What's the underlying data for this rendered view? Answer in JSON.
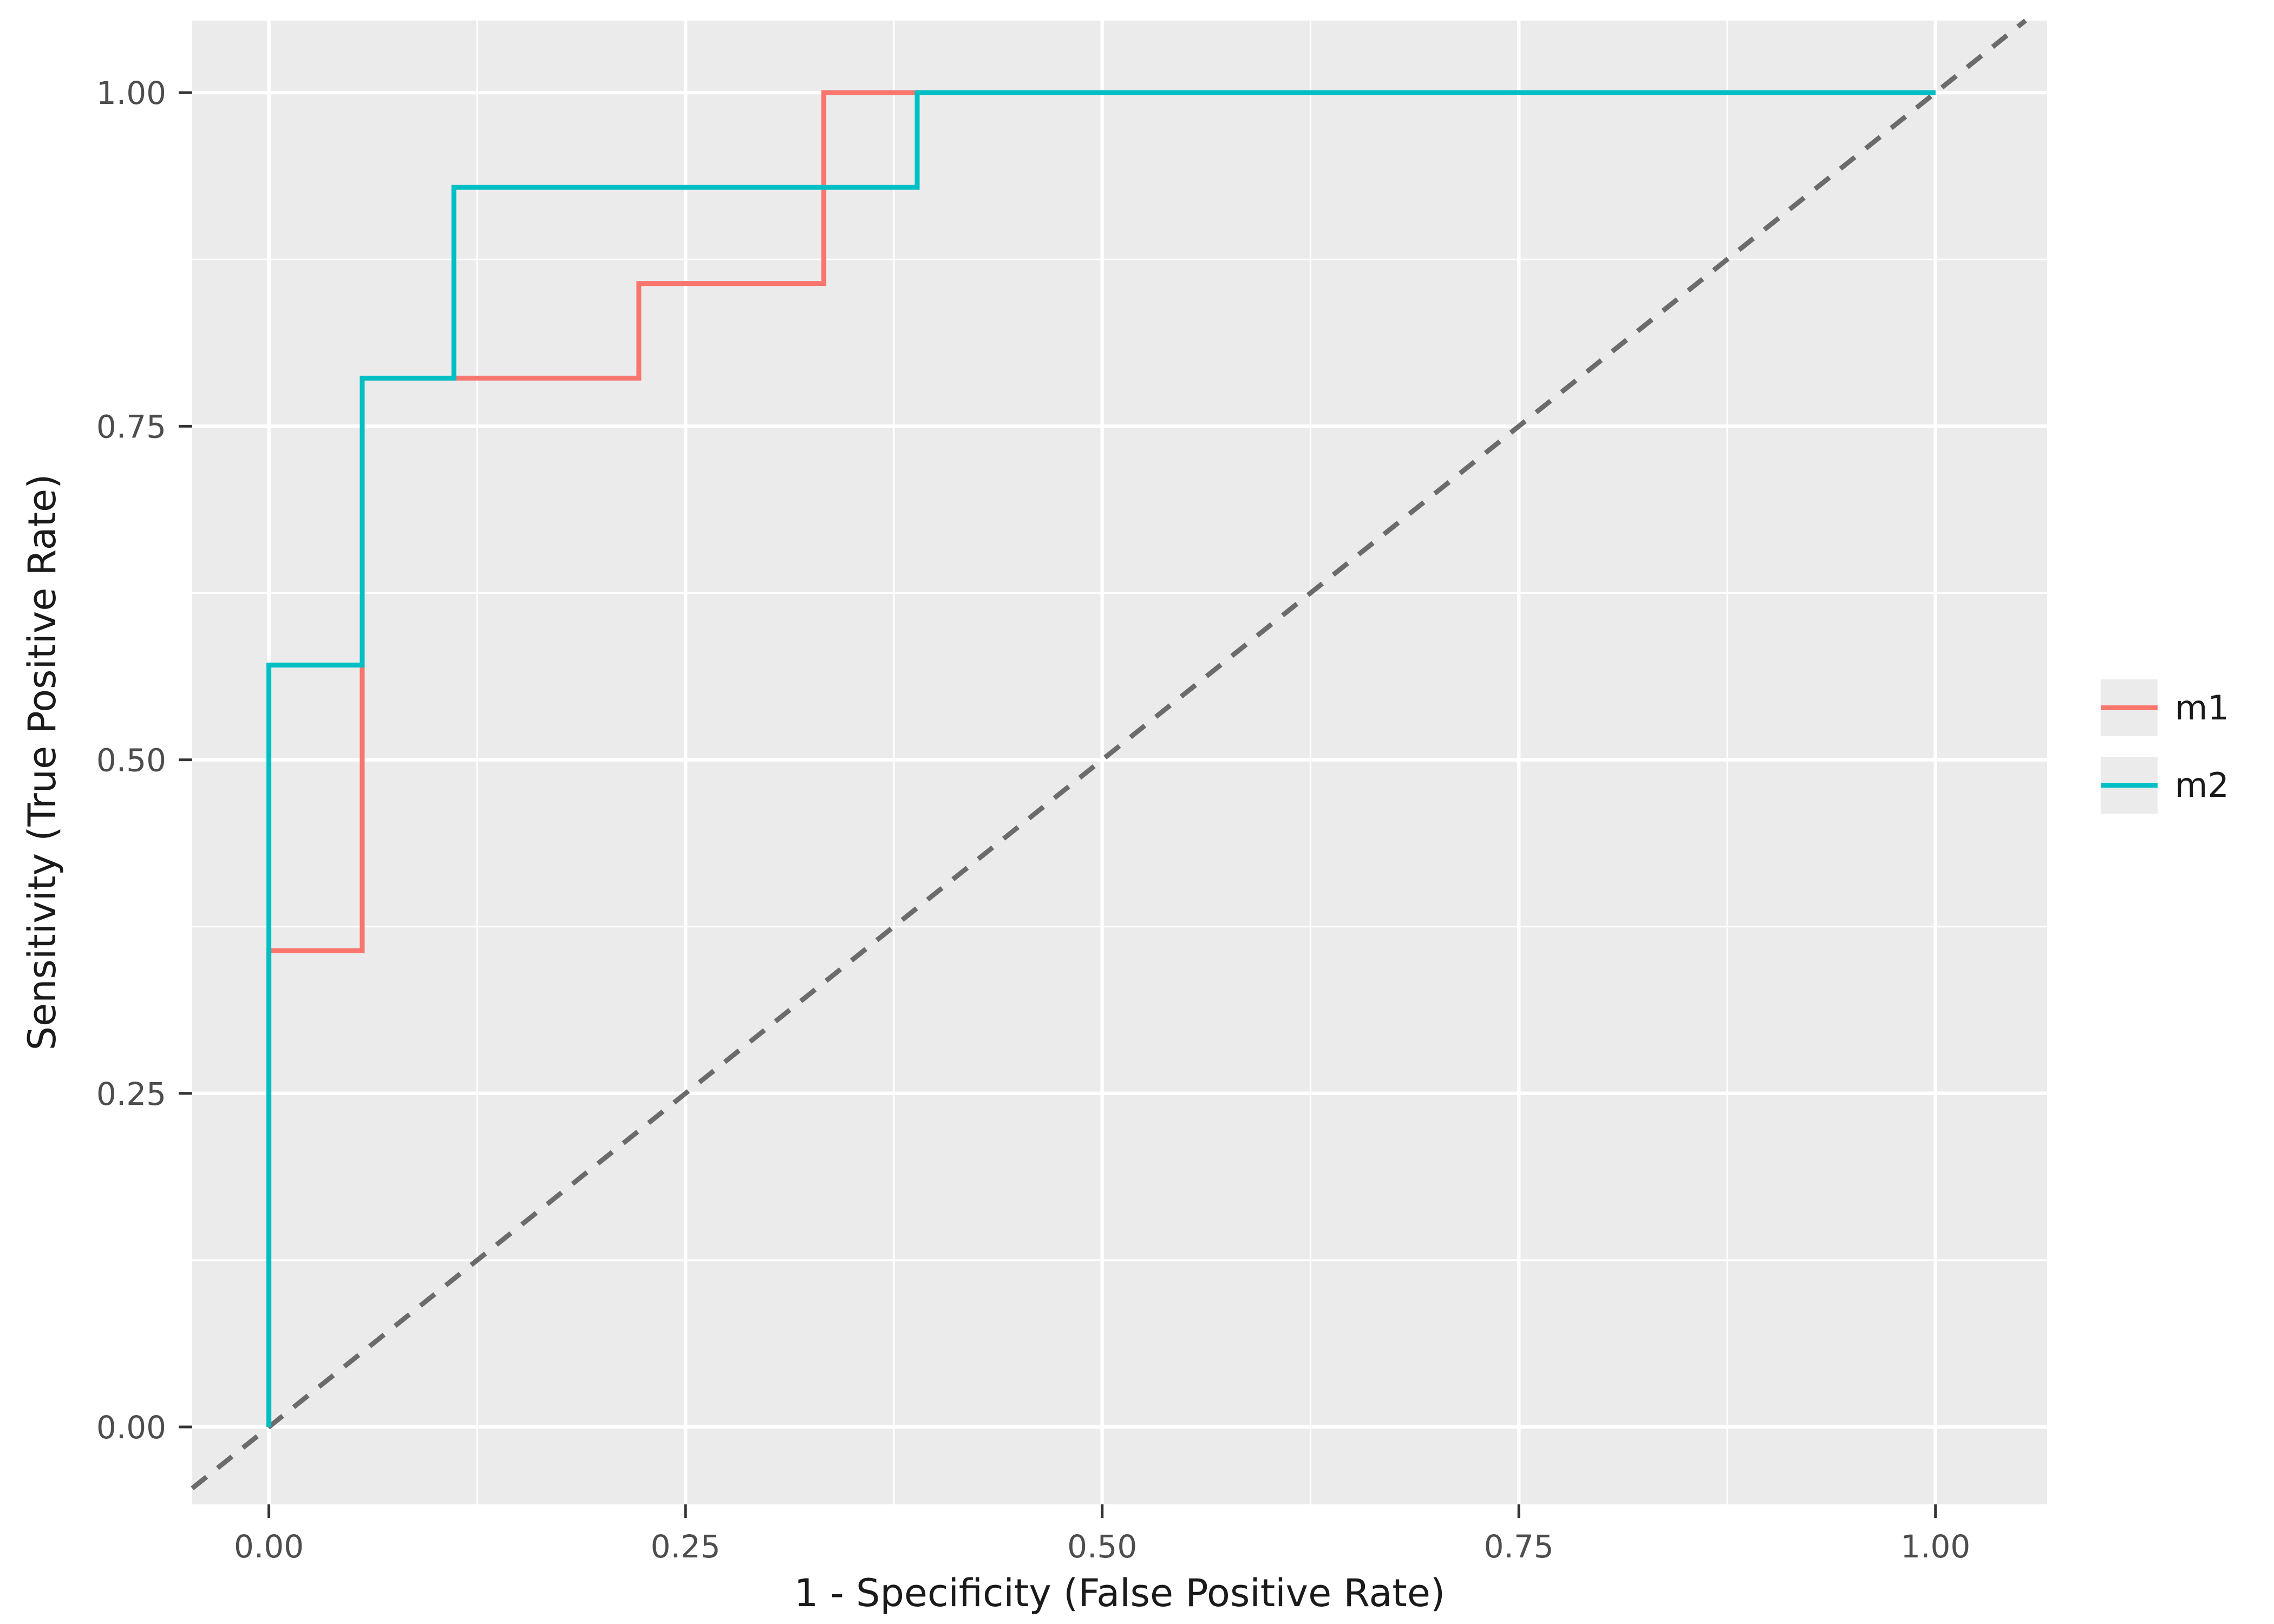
{
  "chart_data": {
    "type": "line",
    "title": "",
    "xlabel": "1 - Specificity (False Positive Rate)",
    "ylabel": "Sensitivity (True Positive Rate)",
    "x_ticks": [
      0,
      0.25,
      0.5,
      0.75,
      1
    ],
    "x_tick_labels": [
      "0.00",
      "0.25",
      "0.50",
      "0.75",
      "1.00"
    ],
    "y_ticks": [
      0,
      0.25,
      0.5,
      0.75,
      1
    ],
    "y_tick_labels": [
      "0.00",
      "0.25",
      "0.50",
      "0.75",
      "1.00"
    ],
    "x_minor": [
      0.125,
      0.375,
      0.625,
      0.875
    ],
    "y_minor": [
      0.125,
      0.375,
      0.625,
      0.875
    ],
    "xlim": [
      -0.046,
      1.067
    ],
    "ylim": [
      -0.058,
      1.054
    ],
    "grid": true,
    "legend_position": "right",
    "series": [
      {
        "name": "m1",
        "color": "#F8766D",
        "x": [
          0,
          0,
          0.056,
          0.056,
          0.222,
          0.222,
          0.333,
          0.333,
          1.0
        ],
        "y": [
          0,
          0.357,
          0.357,
          0.786,
          0.786,
          0.857,
          0.857,
          1.0,
          1.0
        ]
      },
      {
        "name": "m2",
        "color": "#00BFC4",
        "x": [
          0,
          0,
          0.056,
          0.056,
          0.111,
          0.111,
          0.389,
          0.389,
          1.0
        ],
        "y": [
          0,
          0.571,
          0.571,
          0.786,
          0.786,
          0.929,
          0.929,
          1.0,
          1.0
        ]
      }
    ],
    "reference_line": {
      "type": "diagonal",
      "style": "dashed",
      "color": "#6b6b6b"
    },
    "colors": {
      "panel_background": "#EBEBEB",
      "grid": "#FFFFFF",
      "tick_mark": "#333333",
      "tick_text": "#4d4d4d",
      "title_text": "#1a1a1a",
      "legend_key_background": "#EBEBEB"
    }
  }
}
